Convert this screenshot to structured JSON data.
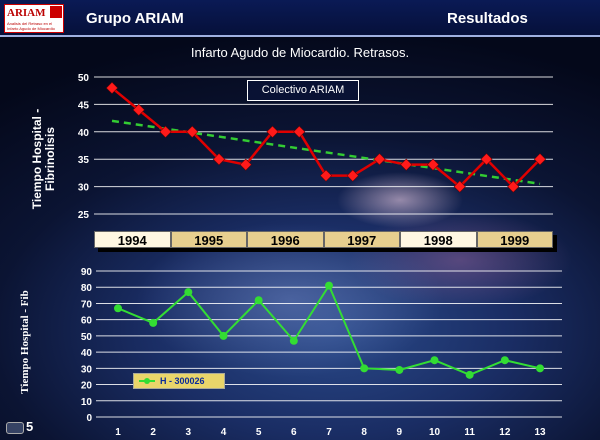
{
  "header": {
    "logo_text": "ARIAM",
    "logo_subtext": "Analisis del Retraso en el Infarto Agudo de Miocardio",
    "title": "Grupo ARIAM",
    "section": "Resultados"
  },
  "footer": {
    "page_number": "5"
  },
  "colors": {
    "red_line": "#e00000",
    "red_marker": "#ff1a1a",
    "trend": "#33cc33",
    "green_line": "#33dd33",
    "grid": "#ffffff"
  },
  "chart_data": [
    {
      "type": "line",
      "title": "Infarto Agudo de Miocardio. Retrasos.",
      "ylabel": "Tiempo Hospital - Fibrinolisis",
      "legend": "Colectivo ARIAM",
      "ylim": [
        25,
        50
      ],
      "yticks": [
        25,
        30,
        35,
        40,
        45,
        50
      ],
      "year_labels": [
        "1994",
        "1995",
        "1996",
        "1997",
        "1998",
        "1999"
      ],
      "series": [
        {
          "values": [
            48,
            44,
            40,
            40,
            35,
            34,
            40,
            40,
            32,
            32,
            35,
            34,
            34,
            30,
            35,
            30,
            35
          ]
        }
      ],
      "trendline": {
        "start": 42,
        "end": 30.5
      }
    },
    {
      "type": "line",
      "ylabel": "Tiempo Hospital - Fib",
      "ylim": [
        0,
        90
      ],
      "yticks": [
        0,
        10,
        20,
        30,
        40,
        50,
        60,
        70,
        80,
        90
      ],
      "x": [
        1,
        2,
        3,
        4,
        5,
        6,
        7,
        8,
        9,
        10,
        11,
        12,
        13
      ],
      "series": [
        {
          "name": "H - 300026",
          "values": [
            67,
            58,
            77,
            50,
            72,
            47,
            81,
            30,
            29,
            35,
            26,
            35,
            30
          ]
        }
      ]
    }
  ]
}
